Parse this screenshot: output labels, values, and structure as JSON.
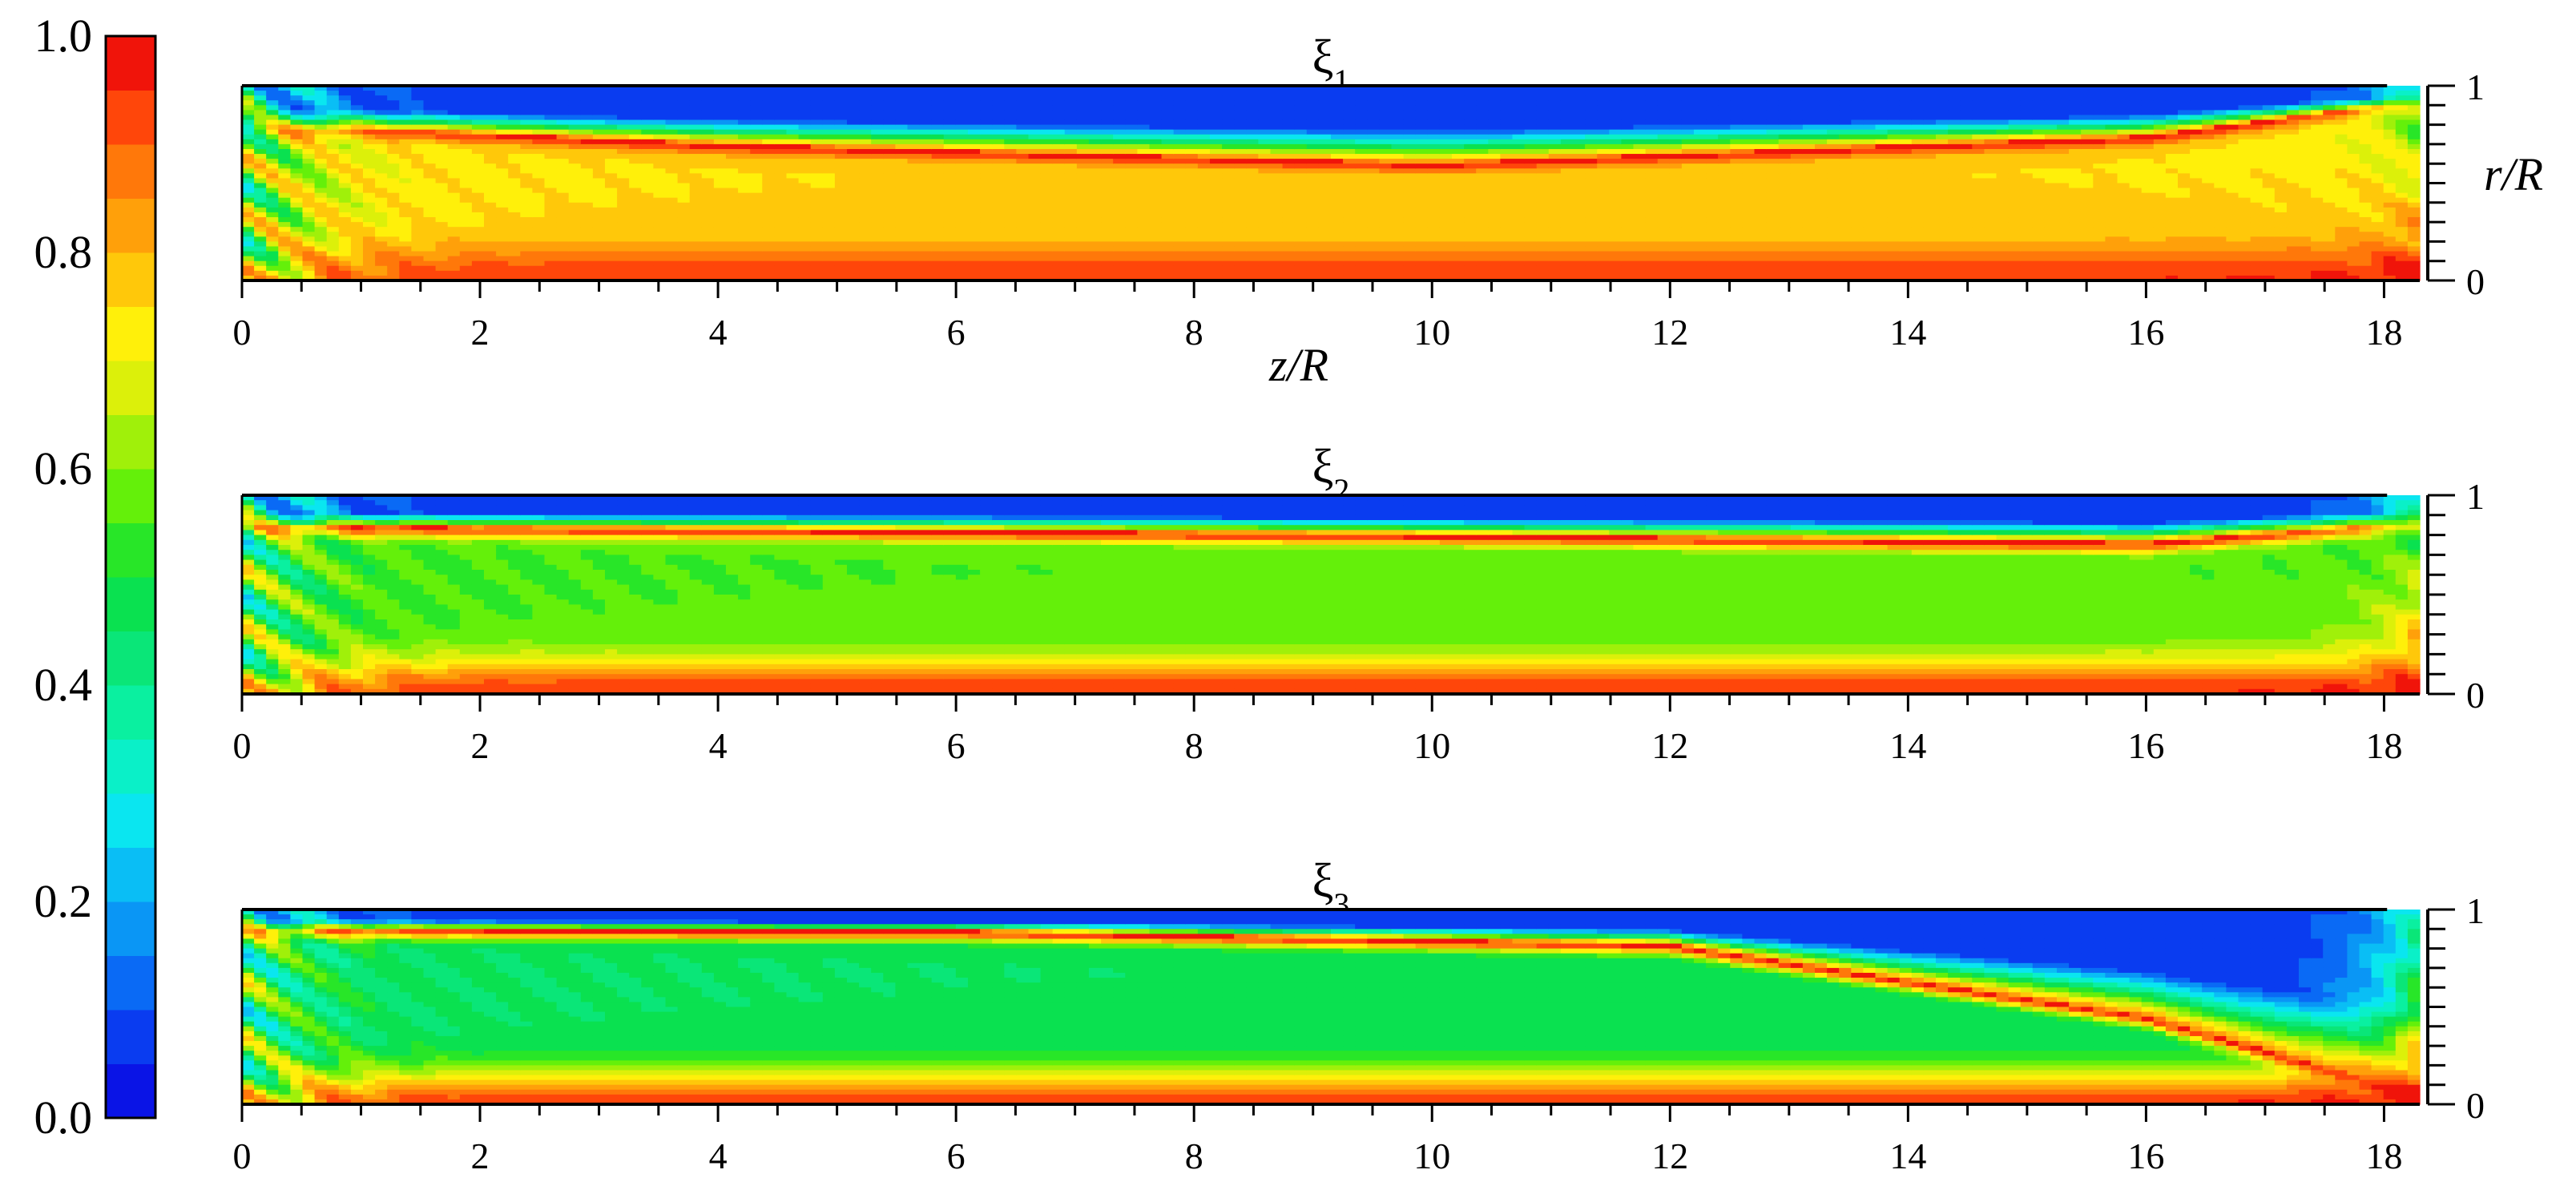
{
  "chart_data": [
    {
      "type": "heatmap",
      "title": "ξ1",
      "title_main": "ξ",
      "title_sub": "1",
      "xlabel": "z/R",
      "ylabel": "r/R",
      "xlim": [
        0,
        18.3
      ],
      "ylim": [
        0,
        1
      ],
      "xticks": [
        "0",
        "2",
        "4",
        "6",
        "8",
        "10",
        "12",
        "14",
        "16",
        "18"
      ],
      "yticks": [
        "0",
        "1"
      ],
      "field_summary": {
        "near_wall_r_1": 0.05,
        "bulk_core": 0.75,
        "axis_r_0": 0.95,
        "shear_layer_peak": 0.98,
        "shear_layer_r_at_z": [
          [
            1,
            0.78
          ],
          [
            4,
            0.7
          ],
          [
            10,
            0.6
          ],
          [
            16,
            0.74
          ],
          [
            18,
            0.9
          ]
        ]
      }
    },
    {
      "type": "heatmap",
      "title": "ξ2",
      "title_main": "ξ",
      "title_sub": "2",
      "xlabel": "",
      "ylabel": "",
      "xlim": [
        0,
        18.3
      ],
      "ylim": [
        0,
        1
      ],
      "xticks": [
        "0",
        "2",
        "4",
        "6",
        "8",
        "10",
        "12",
        "14",
        "16",
        "18"
      ],
      "yticks": [
        "0",
        "1"
      ],
      "field_summary": {
        "near_wall_r_1": 0.05,
        "bulk_core": 0.55,
        "axis_r_0": 0.95,
        "shear_layer_peak": 0.98,
        "shear_layer_r_at_z": [
          [
            1,
            0.84
          ],
          [
            4,
            0.83
          ],
          [
            10,
            0.8
          ],
          [
            16,
            0.76
          ],
          [
            18,
            0.85
          ]
        ]
      }
    },
    {
      "type": "heatmap",
      "title": "ξ3",
      "title_main": "ξ",
      "title_sub": "3",
      "xlabel": "",
      "ylabel": "",
      "xlim": [
        0,
        18.3
      ],
      "ylim": [
        0,
        1
      ],
      "xticks": [
        "0",
        "2",
        "4",
        "6",
        "8",
        "10",
        "12",
        "14",
        "16",
        "18"
      ],
      "yticks": [
        "0",
        "1"
      ],
      "field_summary": {
        "near_wall_r_1": 0.05,
        "bulk_core": 0.45,
        "axis_r_0": 0.95,
        "shear_layer_peak": 0.98,
        "shear_layer_r_at_z": [
          [
            1,
            0.9
          ],
          [
            6,
            0.89
          ],
          [
            12,
            0.82
          ],
          [
            16,
            0.45
          ],
          [
            18,
            0.1
          ]
        ]
      }
    }
  ],
  "colorbar": {
    "min": 0.0,
    "max": 1.0,
    "levels": 20,
    "labels": [
      "0.0",
      "0.2",
      "0.4",
      "0.6",
      "0.8",
      "1.0"
    ],
    "colors": [
      "#0a14e6",
      "#0a3cf0",
      "#0a6af5",
      "#0a96f5",
      "#0abef5",
      "#0ae6f0",
      "#0af0c8",
      "#0af0a0",
      "#0ae678",
      "#0ae150",
      "#28e628",
      "#64f00a",
      "#a0f00a",
      "#dcf00a",
      "#fff00a",
      "#ffc80a",
      "#ffa00a",
      "#ff780a",
      "#ff460a",
      "#f0140a"
    ]
  }
}
